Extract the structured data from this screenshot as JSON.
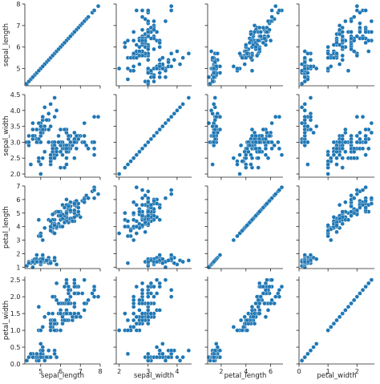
{
  "chart_data": {
    "type": "scatter",
    "kind": "pairplot",
    "variables": [
      "sepal_length",
      "sepal_width",
      "petal_length",
      "petal_width"
    ],
    "marker_color": "#1f77b4",
    "grid": false,
    "legend": "none",
    "axes": {
      "sepal_length": {
        "range": [
          4.2,
          8.0
        ],
        "ticks": [
          5,
          6,
          7,
          8
        ]
      },
      "sepal_width": {
        "range": [
          1.9,
          4.5
        ],
        "ticks": [
          2,
          3,
          4
        ],
        "row_ticks": [
          "2.0",
          "2.5",
          "3.0",
          "3.5",
          "4.0",
          "4.5"
        ]
      },
      "petal_length": {
        "range": [
          0.9,
          7.0
        ],
        "ticks": [
          2,
          4,
          6
        ],
        "row_ticks": [
          1,
          2,
          3,
          4,
          5,
          6,
          7
        ]
      },
      "petal_width": {
        "range": [
          0.0,
          2.6
        ],
        "ticks": [
          0,
          1,
          2
        ],
        "row_ticks": [
          "0.0",
          "0.5",
          "1.0",
          "1.5",
          "2.0",
          "2.5"
        ]
      }
    },
    "observations": [
      [
        5.1,
        3.5,
        1.4,
        0.2
      ],
      [
        4.9,
        3.0,
        1.4,
        0.2
      ],
      [
        4.7,
        3.2,
        1.3,
        0.2
      ],
      [
        4.6,
        3.1,
        1.5,
        0.2
      ],
      [
        5.0,
        3.6,
        1.4,
        0.2
      ],
      [
        5.4,
        3.9,
        1.7,
        0.4
      ],
      [
        4.6,
        3.4,
        1.4,
        0.3
      ],
      [
        5.0,
        3.4,
        1.5,
        0.2
      ],
      [
        4.4,
        2.9,
        1.4,
        0.2
      ],
      [
        4.9,
        3.1,
        1.5,
        0.1
      ],
      [
        5.4,
        3.7,
        1.5,
        0.2
      ],
      [
        4.8,
        3.4,
        1.6,
        0.2
      ],
      [
        4.8,
        3.0,
        1.4,
        0.1
      ],
      [
        4.3,
        3.0,
        1.1,
        0.1
      ],
      [
        5.8,
        4.0,
        1.2,
        0.2
      ],
      [
        5.7,
        4.4,
        1.5,
        0.4
      ],
      [
        5.4,
        3.9,
        1.3,
        0.4
      ],
      [
        5.1,
        3.5,
        1.4,
        0.3
      ],
      [
        5.7,
        3.8,
        1.7,
        0.3
      ],
      [
        5.1,
        3.8,
        1.5,
        0.3
      ],
      [
        5.4,
        3.4,
        1.7,
        0.2
      ],
      [
        5.1,
        3.7,
        1.5,
        0.4
      ],
      [
        4.6,
        3.6,
        1.0,
        0.2
      ],
      [
        5.1,
        3.3,
        1.7,
        0.5
      ],
      [
        4.8,
        3.4,
        1.9,
        0.2
      ],
      [
        5.0,
        3.0,
        1.6,
        0.2
      ],
      [
        5.0,
        3.4,
        1.6,
        0.4
      ],
      [
        5.2,
        3.5,
        1.5,
        0.2
      ],
      [
        5.2,
        3.4,
        1.4,
        0.2
      ],
      [
        4.7,
        3.2,
        1.6,
        0.2
      ],
      [
        4.8,
        3.1,
        1.6,
        0.2
      ],
      [
        5.4,
        3.4,
        1.5,
        0.4
      ],
      [
        5.2,
        4.1,
        1.5,
        0.1
      ],
      [
        5.5,
        4.2,
        1.4,
        0.2
      ],
      [
        4.9,
        3.1,
        1.5,
        0.2
      ],
      [
        5.0,
        3.2,
        1.2,
        0.2
      ],
      [
        5.5,
        3.5,
        1.3,
        0.2
      ],
      [
        4.9,
        3.6,
        1.4,
        0.1
      ],
      [
        4.4,
        3.0,
        1.3,
        0.2
      ],
      [
        5.1,
        3.4,
        1.5,
        0.2
      ],
      [
        5.0,
        3.5,
        1.3,
        0.3
      ],
      [
        4.5,
        2.3,
        1.3,
        0.3
      ],
      [
        4.4,
        3.2,
        1.3,
        0.2
      ],
      [
        5.0,
        3.5,
        1.6,
        0.6
      ],
      [
        5.1,
        3.8,
        1.9,
        0.4
      ],
      [
        4.8,
        3.0,
        1.4,
        0.3
      ],
      [
        5.1,
        3.8,
        1.6,
        0.2
      ],
      [
        4.6,
        3.2,
        1.4,
        0.2
      ],
      [
        5.3,
        3.7,
        1.5,
        0.2
      ],
      [
        5.0,
        3.3,
        1.4,
        0.2
      ],
      [
        7.0,
        3.2,
        4.7,
        1.4
      ],
      [
        6.4,
        3.2,
        4.5,
        1.5
      ],
      [
        6.9,
        3.1,
        4.9,
        1.5
      ],
      [
        5.5,
        2.3,
        4.0,
        1.3
      ],
      [
        6.5,
        2.8,
        4.6,
        1.5
      ],
      [
        5.7,
        2.8,
        4.5,
        1.3
      ],
      [
        6.3,
        3.3,
        4.7,
        1.6
      ],
      [
        4.9,
        2.4,
        3.3,
        1.0
      ],
      [
        6.6,
        2.9,
        4.6,
        1.3
      ],
      [
        5.2,
        2.7,
        3.9,
        1.4
      ],
      [
        5.0,
        2.0,
        3.5,
        1.0
      ],
      [
        5.9,
        3.0,
        4.2,
        1.5
      ],
      [
        6.0,
        2.2,
        4.0,
        1.0
      ],
      [
        6.1,
        2.9,
        4.7,
        1.4
      ],
      [
        5.6,
        2.9,
        3.6,
        1.3
      ],
      [
        6.7,
        3.1,
        4.4,
        1.4
      ],
      [
        5.6,
        3.0,
        4.5,
        1.5
      ],
      [
        5.8,
        2.7,
        4.1,
        1.0
      ],
      [
        6.2,
        2.2,
        4.5,
        1.5
      ],
      [
        5.6,
        2.5,
        3.9,
        1.1
      ],
      [
        5.9,
        3.2,
        4.8,
        1.8
      ],
      [
        6.1,
        2.8,
        4.0,
        1.3
      ],
      [
        6.3,
        2.5,
        4.9,
        1.5
      ],
      [
        6.1,
        2.8,
        4.7,
        1.2
      ],
      [
        6.4,
        2.9,
        4.3,
        1.3
      ],
      [
        6.6,
        3.0,
        4.4,
        1.4
      ],
      [
        6.8,
        2.8,
        4.8,
        1.4
      ],
      [
        6.7,
        3.0,
        5.0,
        1.7
      ],
      [
        6.0,
        2.9,
        4.5,
        1.5
      ],
      [
        5.7,
        2.6,
        3.5,
        1.0
      ],
      [
        5.5,
        2.4,
        3.8,
        1.1
      ],
      [
        5.5,
        2.4,
        3.7,
        1.0
      ],
      [
        5.8,
        2.7,
        3.9,
        1.2
      ],
      [
        6.0,
        2.7,
        5.1,
        1.6
      ],
      [
        5.4,
        3.0,
        4.5,
        1.5
      ],
      [
        6.0,
        3.4,
        4.5,
        1.6
      ],
      [
        6.7,
        3.1,
        4.7,
        1.5
      ],
      [
        6.3,
        2.3,
        4.4,
        1.3
      ],
      [
        5.6,
        3.0,
        4.1,
        1.3
      ],
      [
        5.5,
        2.5,
        4.0,
        1.3
      ],
      [
        5.5,
        2.6,
        4.4,
        1.2
      ],
      [
        6.1,
        3.0,
        4.6,
        1.4
      ],
      [
        5.8,
        2.6,
        4.0,
        1.2
      ],
      [
        5.0,
        2.3,
        3.3,
        1.0
      ],
      [
        5.6,
        2.7,
        4.2,
        1.3
      ],
      [
        5.7,
        3.0,
        4.2,
        1.2
      ],
      [
        5.7,
        2.9,
        4.2,
        1.3
      ],
      [
        6.2,
        2.9,
        4.3,
        1.3
      ],
      [
        5.1,
        2.5,
        3.0,
        1.1
      ],
      [
        5.7,
        2.8,
        4.1,
        1.3
      ],
      [
        6.3,
        3.3,
        6.0,
        2.5
      ],
      [
        5.8,
        2.7,
        5.1,
        1.9
      ],
      [
        7.1,
        3.0,
        5.9,
        2.1
      ],
      [
        6.3,
        2.9,
        5.6,
        1.8
      ],
      [
        6.5,
        3.0,
        5.8,
        2.2
      ],
      [
        7.6,
        3.0,
        6.6,
        2.1
      ],
      [
        4.9,
        2.5,
        4.5,
        1.7
      ],
      [
        7.3,
        2.9,
        6.3,
        1.8
      ],
      [
        6.7,
        2.5,
        5.8,
        1.8
      ],
      [
        7.2,
        3.6,
        6.1,
        2.5
      ],
      [
        6.5,
        3.2,
        5.1,
        2.0
      ],
      [
        6.4,
        2.7,
        5.3,
        1.9
      ],
      [
        6.8,
        3.0,
        5.5,
        2.1
      ],
      [
        5.7,
        2.5,
        5.0,
        2.0
      ],
      [
        5.8,
        2.8,
        5.1,
        2.4
      ],
      [
        6.4,
        3.2,
        5.3,
        2.3
      ],
      [
        6.5,
        3.0,
        5.5,
        1.8
      ],
      [
        7.7,
        3.8,
        6.7,
        2.2
      ],
      [
        7.7,
        2.6,
        6.9,
        2.3
      ],
      [
        6.0,
        2.2,
        5.0,
        1.5
      ],
      [
        6.9,
        3.2,
        5.7,
        2.3
      ],
      [
        5.6,
        2.8,
        4.9,
        2.0
      ],
      [
        7.7,
        2.8,
        6.7,
        2.0
      ],
      [
        6.3,
        2.7,
        4.9,
        1.8
      ],
      [
        6.7,
        3.3,
        5.7,
        2.1
      ],
      [
        7.2,
        3.2,
        6.0,
        1.8
      ],
      [
        6.2,
        2.8,
        4.8,
        1.8
      ],
      [
        6.1,
        3.0,
        4.9,
        1.8
      ],
      [
        6.4,
        2.8,
        5.6,
        2.1
      ],
      [
        7.2,
        3.0,
        5.8,
        1.6
      ],
      [
        7.4,
        2.8,
        6.1,
        1.9
      ],
      [
        7.9,
        3.8,
        6.4,
        2.0
      ],
      [
        6.4,
        2.8,
        5.6,
        2.2
      ],
      [
        6.3,
        2.8,
        5.1,
        1.5
      ],
      [
        6.1,
        2.6,
        5.6,
        1.4
      ],
      [
        7.7,
        3.0,
        6.1,
        2.3
      ],
      [
        6.3,
        3.4,
        5.6,
        2.4
      ],
      [
        6.4,
        3.1,
        5.5,
        1.8
      ],
      [
        6.0,
        3.0,
        4.8,
        1.8
      ],
      [
        6.9,
        3.1,
        5.4,
        2.1
      ],
      [
        6.7,
        3.1,
        5.6,
        2.4
      ],
      [
        6.9,
        3.1,
        5.1,
        2.3
      ],
      [
        5.8,
        2.7,
        5.1,
        1.9
      ],
      [
        6.8,
        3.2,
        5.9,
        2.3
      ],
      [
        6.7,
        3.3,
        5.7,
        2.5
      ],
      [
        6.7,
        3.0,
        5.2,
        2.3
      ],
      [
        6.3,
        2.5,
        5.0,
        1.9
      ],
      [
        6.5,
        3.0,
        5.2,
        2.0
      ],
      [
        6.2,
        3.4,
        5.4,
        2.3
      ],
      [
        5.9,
        3.0,
        5.1,
        1.8
      ]
    ]
  }
}
